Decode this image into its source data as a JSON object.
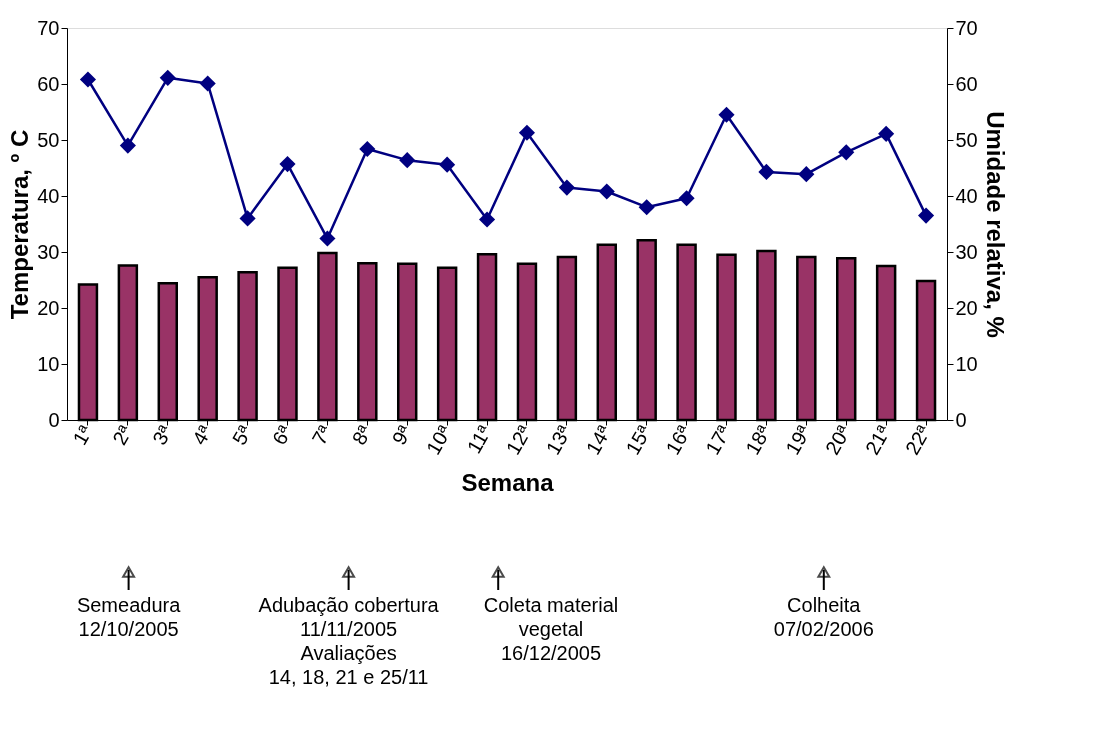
{
  "chart_data": {
    "type": "bar",
    "xlabel": "Semana",
    "ylabel": "Temperatura, º C",
    "y2label": "Umidade relativa, %",
    "categories": [
      "1ª",
      "2ª",
      "3ª",
      "4ª",
      "5ª",
      "6ª",
      "7ª",
      "8ª",
      "9ª",
      "10ª",
      "11ª",
      "12ª",
      "13ª",
      "14ª",
      "15ª",
      "16ª",
      "17ª",
      "18ª",
      "19ª",
      "20ª",
      "21ª",
      "22ª"
    ],
    "series": [
      {
        "color": "#993366",
        "values": [
          24.2,
          27.6,
          24.4,
          25.5,
          26.4,
          27.2,
          29.8,
          28.0,
          27.9,
          27.2,
          29.6,
          27.9,
          29.1,
          31.3,
          32.1,
          31.3,
          29.5,
          30.2,
          29.1,
          28.9,
          27.5,
          24.8
        ]
      },
      {
        "type": "line",
        "axis": "y2",
        "color": "#000080",
        "values": [
          60.8,
          49.0,
          61.1,
          60.1,
          36.0,
          45.7,
          32.4,
          48.4,
          46.4,
          45.6,
          35.8,
          51.3,
          41.5,
          40.8,
          38.0,
          39.6,
          54.5,
          44.3,
          43.9,
          47.8,
          51.1,
          36.5
        ]
      }
    ],
    "ylim": [
      0,
      70
    ],
    "yticks": [
      0,
      10,
      20,
      30,
      40,
      50,
      60,
      70
    ],
    "y2lim": [
      0,
      70
    ],
    "y2ticks": [
      0,
      10,
      20,
      30,
      40,
      50,
      60,
      70
    ],
    "marker": "diamond",
    "grid": false,
    "annotations": [
      "Semeadura\n12/10/2005",
      "Adubação cobertura\n11/11/2005\nAvaliações\n14, 18, 21 e 25/11",
      "Coleta material\nvegetal\n16/12/2005",
      "Colheita\n07/02/2006"
    ]
  }
}
